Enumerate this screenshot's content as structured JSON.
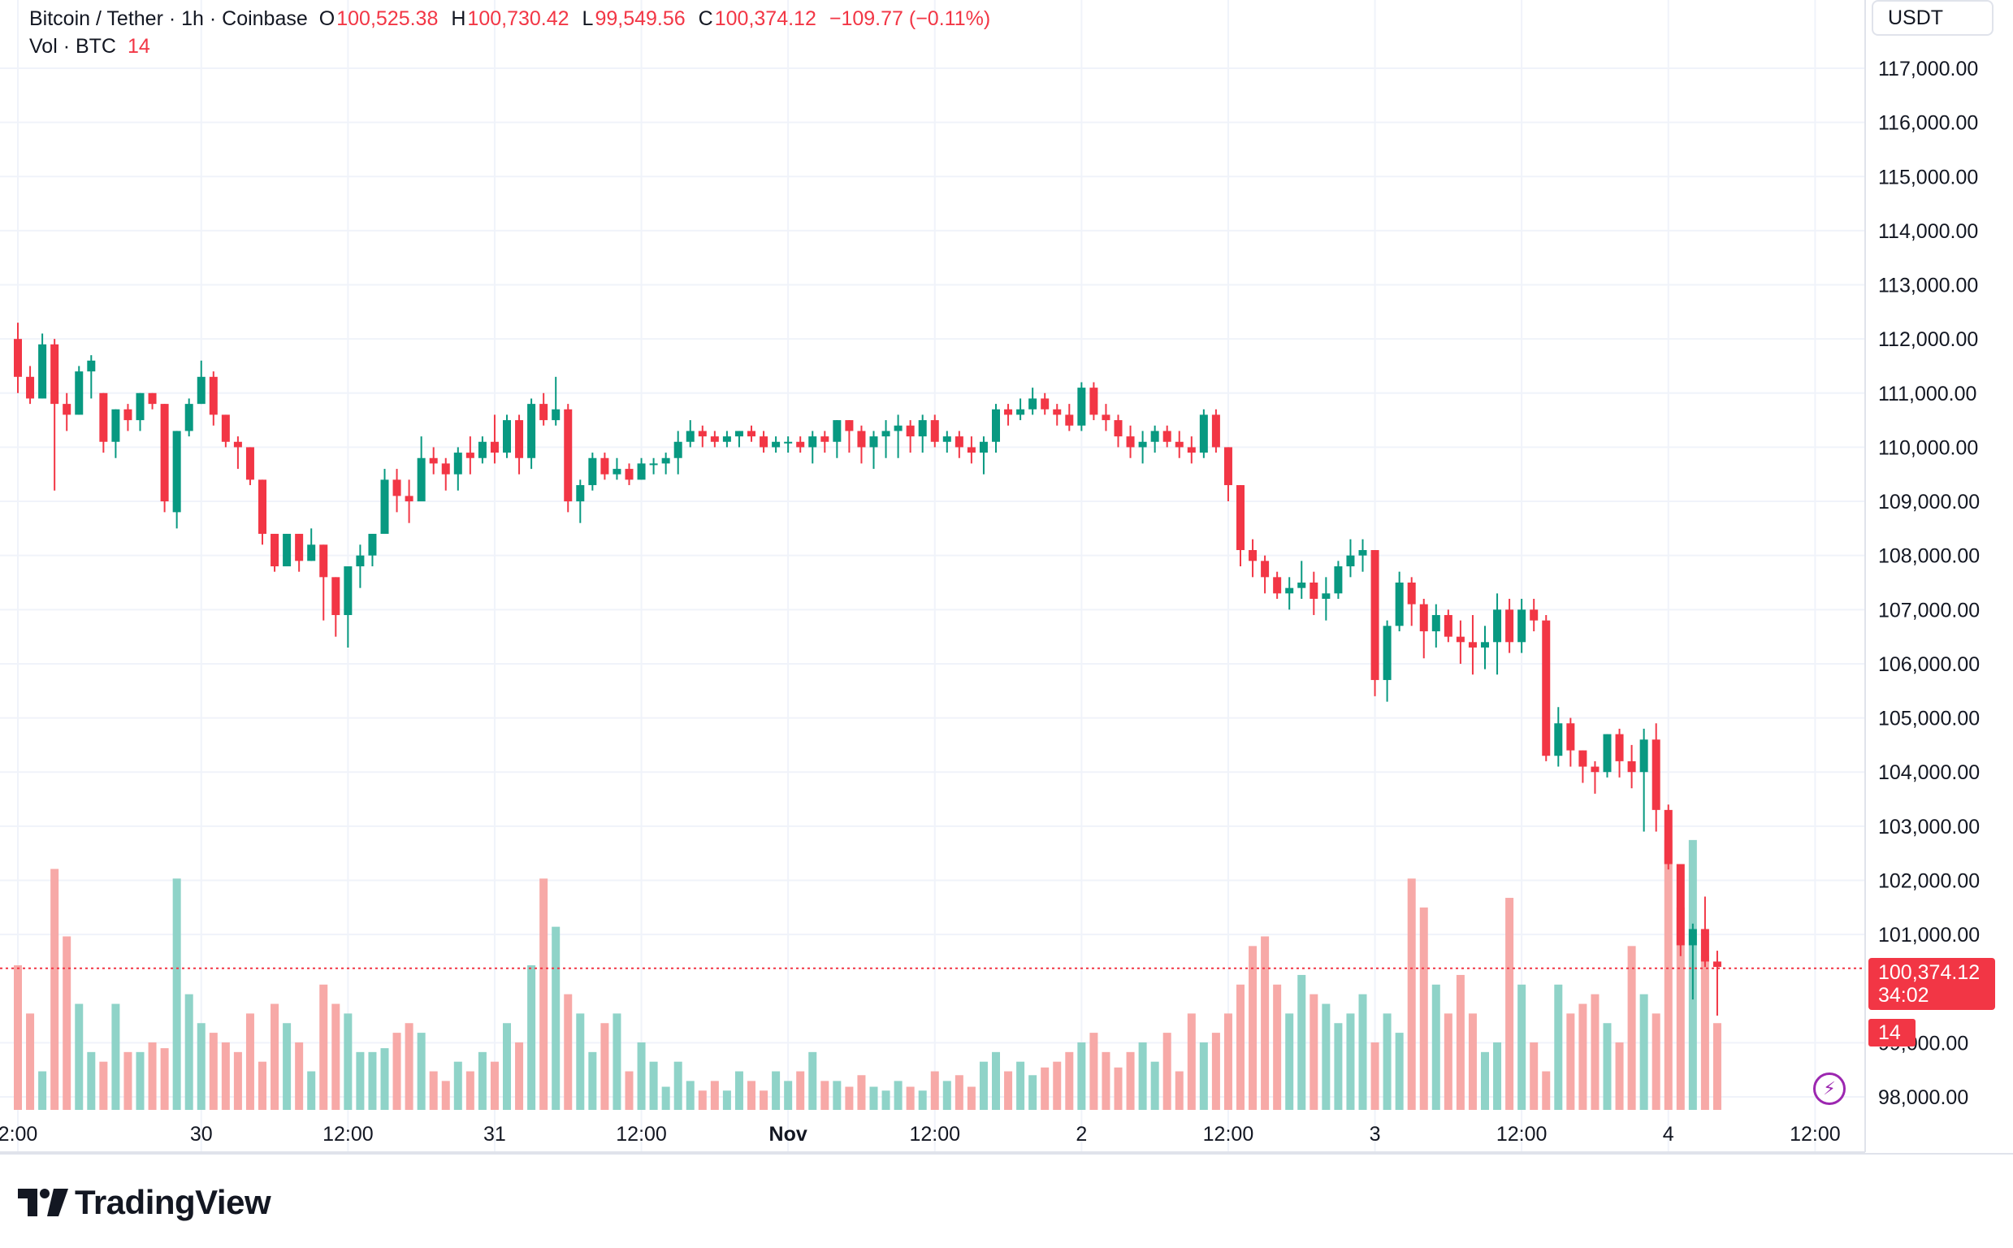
{
  "header": {
    "symbol": "Bitcoin / Tether · 1h · Coinbase",
    "o_label": "O",
    "o_value": "100,525.38",
    "h_label": "H",
    "h_value": "100,730.42",
    "l_label": "L",
    "l_value": "99,549.56",
    "c_label": "C",
    "c_value": "100,374.12",
    "change": "−109.77 (−0.11%)",
    "vol_label": "Vol · BTC",
    "vol_value": "14"
  },
  "price_axis": {
    "unit": "USDT",
    "last_price": "100,374.12",
    "countdown": "34:02",
    "vol_tag": "14"
  },
  "brand": {
    "name": "TradingView"
  },
  "colors": {
    "up": "#089981",
    "down": "#f23645",
    "up_vol": "#8fd3c8",
    "down_vol": "#f7a9a7",
    "grid": "#f0f3fa",
    "axis_text": "#131722"
  },
  "chart_data": {
    "type": "candlestick",
    "title": "Bitcoin / Tether · 1h · Coinbase",
    "yunit": "USDT",
    "ylim": [
      97700,
      117600
    ],
    "y_ticks": [
      "117,000.00",
      "116,000.00",
      "115,000.00",
      "114,000.00",
      "113,000.00",
      "112,000.00",
      "111,000.00",
      "110,000.00",
      "109,000.00",
      "108,000.00",
      "107,000.00",
      "106,000.00",
      "105,000.00",
      "104,000.00",
      "103,000.00",
      "102,000.00",
      "101,000.00",
      "99,000.00",
      "98,000.00"
    ],
    "x_ticks": [
      {
        "label": "2:00",
        "bar": 0
      },
      {
        "label": "30",
        "bar": 15
      },
      {
        "label": "12:00",
        "bar": 27
      },
      {
        "label": "31",
        "bar": 39
      },
      {
        "label": "12:00",
        "bar": 51
      },
      {
        "label": "Nov",
        "bar": 63
      },
      {
        "label": "12:00",
        "bar": 75
      },
      {
        "label": "2",
        "bar": 87
      },
      {
        "label": "12:00",
        "bar": 99
      },
      {
        "label": "3",
        "bar": 111
      },
      {
        "label": "12:00",
        "bar": 123
      },
      {
        "label": "4",
        "bar": 135
      },
      {
        "label": "12:00",
        "bar": 147
      }
    ],
    "grid": true,
    "last_price": 100374.12,
    "volume_unit": "BTC",
    "candles": [
      [
        112000,
        112300,
        111000,
        111300,
        7.5
      ],
      [
        111300,
        111500,
        110800,
        110900,
        5
      ],
      [
        110900,
        112100,
        110900,
        111900,
        2
      ],
      [
        111900,
        112000,
        109200,
        110800,
        12.5
      ],
      [
        110800,
        111000,
        110300,
        110600,
        9
      ],
      [
        110600,
        111500,
        110600,
        111400,
        5.5
      ],
      [
        111400,
        111700,
        110900,
        111600,
        3
      ],
      [
        111000,
        111000,
        109900,
        110100,
        2.5
      ],
      [
        110100,
        110700,
        109800,
        110700,
        5.5
      ],
      [
        110700,
        110800,
        110300,
        110500,
        3
      ],
      [
        110500,
        111000,
        110300,
        111000,
        3
      ],
      [
        111000,
        111000,
        110700,
        110800,
        3.5
      ],
      [
        110800,
        110800,
        108800,
        109000,
        3.2
      ],
      [
        108800,
        110300,
        108500,
        110300,
        12
      ],
      [
        110300,
        110900,
        110200,
        110800,
        6
      ],
      [
        110800,
        111600,
        110800,
        111300,
        4.5
      ],
      [
        111300,
        111400,
        110400,
        110600,
        4
      ],
      [
        110600,
        110600,
        110000,
        110100,
        3.5
      ],
      [
        110100,
        110200,
        109600,
        110000,
        3
      ],
      [
        110000,
        110000,
        109300,
        109400,
        5
      ],
      [
        109400,
        109400,
        108200,
        108400,
        2.5
      ],
      [
        108400,
        108400,
        107700,
        107800,
        5.5
      ],
      [
        107800,
        108400,
        107800,
        108400,
        4.5
      ],
      [
        108400,
        108400,
        107700,
        107900,
        3.5
      ],
      [
        107900,
        108500,
        107900,
        108200,
        2
      ],
      [
        108200,
        108200,
        106800,
        107600,
        6.5
      ],
      [
        107600,
        107600,
        106500,
        106900,
        5.5
      ],
      [
        106900,
        107800,
        106300,
        107800,
        5
      ],
      [
        107800,
        108200,
        107400,
        108000,
        3
      ],
      [
        108000,
        108400,
        107800,
        108400,
        3
      ],
      [
        108400,
        109600,
        108400,
        109400,
        3.2
      ],
      [
        109400,
        109600,
        108800,
        109100,
        4
      ],
      [
        109100,
        109400,
        108600,
        109000,
        4.5
      ],
      [
        109000,
        110200,
        109000,
        109800,
        4
      ],
      [
        109800,
        110000,
        109500,
        109700,
        2
      ],
      [
        109700,
        109800,
        109200,
        109500,
        1.5
      ],
      [
        109500,
        110000,
        109200,
        109900,
        2.5
      ],
      [
        109900,
        110200,
        109500,
        109800,
        2
      ],
      [
        109800,
        110200,
        109700,
        110100,
        3
      ],
      [
        110100,
        110600,
        109700,
        109900,
        2.5
      ],
      [
        109900,
        110600,
        109800,
        110500,
        4.5
      ],
      [
        110500,
        110600,
        109500,
        109800,
        3.5
      ],
      [
        109800,
        110900,
        109600,
        110800,
        7.5
      ],
      [
        110800,
        111000,
        110400,
        110500,
        12
      ],
      [
        110500,
        111300,
        110400,
        110700,
        9.5
      ],
      [
        110700,
        110800,
        108800,
        109000,
        6
      ],
      [
        109000,
        109400,
        108600,
        109300,
        5
      ],
      [
        109300,
        109900,
        109200,
        109800,
        3
      ],
      [
        109800,
        109900,
        109400,
        109500,
        4.5
      ],
      [
        109500,
        109800,
        109400,
        109600,
        5
      ],
      [
        109600,
        109700,
        109300,
        109400,
        2
      ],
      [
        109400,
        109800,
        109400,
        109700,
        3.5
      ],
      [
        109700,
        109800,
        109500,
        109700,
        2.5
      ],
      [
        109700,
        109900,
        109500,
        109800,
        1.2
      ],
      [
        109800,
        110300,
        109500,
        110100,
        2.5
      ],
      [
        110100,
        110500,
        110000,
        110300,
        1.5
      ],
      [
        110300,
        110400,
        110000,
        110200,
        1
      ],
      [
        110200,
        110300,
        110000,
        110100,
        1.5
      ],
      [
        110100,
        110300,
        110000,
        110200,
        1
      ],
      [
        110200,
        110300,
        110000,
        110300,
        2
      ],
      [
        110300,
        110400,
        110100,
        110200,
        1.5
      ],
      [
        110200,
        110300,
        109900,
        110000,
        1
      ],
      [
        110000,
        110200,
        109900,
        110100,
        2
      ],
      [
        110100,
        110200,
        109900,
        110100,
        1.5
      ],
      [
        110100,
        110200,
        109900,
        110000,
        2
      ],
      [
        110000,
        110300,
        109700,
        110200,
        3
      ],
      [
        110200,
        110300,
        109900,
        110100,
        1.5
      ],
      [
        110100,
        110500,
        109800,
        110500,
        1.5
      ],
      [
        110500,
        110500,
        109900,
        110300,
        1.2
      ],
      [
        110300,
        110400,
        109700,
        110000,
        1.8
      ],
      [
        110000,
        110300,
        109600,
        110200,
        1.2
      ],
      [
        110200,
        110500,
        109800,
        110300,
        1
      ],
      [
        110300,
        110600,
        109800,
        110400,
        1.5
      ],
      [
        110400,
        110500,
        109900,
        110200,
        1.2
      ],
      [
        110200,
        110600,
        109900,
        110500,
        1
      ],
      [
        110500,
        110600,
        110000,
        110100,
        2
      ],
      [
        110100,
        110300,
        109900,
        110200,
        1.5
      ],
      [
        110200,
        110300,
        109800,
        110000,
        1.8
      ],
      [
        110000,
        110200,
        109700,
        109900,
        1.2
      ],
      [
        109900,
        110200,
        109500,
        110100,
        2.5
      ],
      [
        110100,
        110800,
        109900,
        110700,
        3
      ],
      [
        110700,
        110800,
        110400,
        110600,
        2
      ],
      [
        110600,
        110900,
        110500,
        110700,
        2.5
      ],
      [
        110700,
        111100,
        110600,
        110900,
        1.8
      ],
      [
        110900,
        111000,
        110600,
        110700,
        2.2
      ],
      [
        110700,
        110800,
        110400,
        110600,
        2.5
      ],
      [
        110600,
        110800,
        110300,
        110400,
        3
      ],
      [
        110400,
        111200,
        110300,
        111100,
        3.5
      ],
      [
        111100,
        111200,
        110500,
        110600,
        4
      ],
      [
        110600,
        110800,
        110300,
        110500,
        3
      ],
      [
        110500,
        110600,
        110000,
        110200,
        2.2
      ],
      [
        110200,
        110400,
        109800,
        110000,
        3
      ],
      [
        110000,
        110300,
        109700,
        110100,
        3.5
      ],
      [
        110100,
        110400,
        109900,
        110300,
        2.5
      ],
      [
        110300,
        110400,
        110000,
        110100,
        4
      ],
      [
        110100,
        110300,
        109800,
        110000,
        2
      ],
      [
        110000,
        110200,
        109700,
        109900,
        5
      ],
      [
        109900,
        110700,
        109800,
        110600,
        3.5
      ],
      [
        110600,
        110700,
        109900,
        110000,
        4
      ],
      [
        110000,
        110000,
        109000,
        109300,
        5
      ],
      [
        109300,
        109300,
        107800,
        108100,
        6.5
      ],
      [
        108100,
        108300,
        107600,
        107900,
        8.5
      ],
      [
        107900,
        108000,
        107300,
        107600,
        9
      ],
      [
        107600,
        107700,
        107200,
        107300,
        6.5
      ],
      [
        107300,
        107600,
        107000,
        107400,
        5
      ],
      [
        107400,
        107900,
        107200,
        107500,
        7
      ],
      [
        107500,
        107700,
        106900,
        107200,
        6
      ],
      [
        107200,
        107600,
        106800,
        107300,
        5.5
      ],
      [
        107300,
        107900,
        107200,
        107800,
        4.5
      ],
      [
        107800,
        108300,
        107600,
        108000,
        5
      ],
      [
        108000,
        108300,
        107700,
        108100,
        6
      ],
      [
        108100,
        108100,
        105400,
        105700,
        3.5
      ],
      [
        105700,
        106800,
        105300,
        106700,
        5
      ],
      [
        106700,
        107700,
        106600,
        107500,
        4
      ],
      [
        107500,
        107600,
        106700,
        107100,
        12
      ],
      [
        107100,
        107200,
        106100,
        106600,
        10.5
      ],
      [
        106600,
        107100,
        106300,
        106900,
        6.5
      ],
      [
        106900,
        107000,
        106400,
        106500,
        5
      ],
      [
        106500,
        106800,
        106000,
        106400,
        7
      ],
      [
        106400,
        106900,
        105800,
        106300,
        5
      ],
      [
        106300,
        106700,
        105900,
        106400,
        3
      ],
      [
        106400,
        107300,
        105800,
        107000,
        3.5
      ],
      [
        107000,
        107200,
        106200,
        106400,
        11
      ],
      [
        106400,
        107200,
        106200,
        107000,
        6.5
      ],
      [
        107000,
        107200,
        106600,
        106800,
        3.5
      ],
      [
        106800,
        106900,
        104200,
        104300,
        2
      ],
      [
        104300,
        105200,
        104100,
        104900,
        6.5
      ],
      [
        104900,
        105000,
        104100,
        104400,
        5
      ],
      [
        104400,
        104400,
        103800,
        104100,
        5.5
      ],
      [
        104100,
        104200,
        103600,
        104000,
        6
      ],
      [
        104000,
        104700,
        103900,
        104700,
        4.5
      ],
      [
        104700,
        104800,
        103900,
        104200,
        3.5
      ],
      [
        104200,
        104500,
        103700,
        104000,
        8.5
      ],
      [
        104000,
        104800,
        102900,
        104600,
        6
      ],
      [
        104600,
        104900,
        102900,
        103300,
        5
      ],
      [
        103300,
        103400,
        102200,
        102300,
        14
      ],
      [
        102300,
        102300,
        100600,
        100800,
        10.5
      ],
      [
        100800,
        101200,
        99800,
        101100,
        14
      ],
      [
        101100,
        101700,
        100400,
        100500,
        8
      ],
      [
        100500,
        100700,
        99500,
        100400,
        4.5
      ]
    ]
  }
}
